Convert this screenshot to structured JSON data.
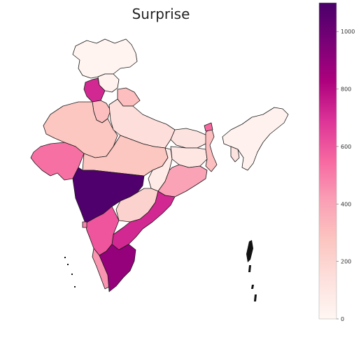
{
  "title": "Surprise",
  "colormap": {
    "name": "RdPu",
    "stops": [
      "#fff7f3",
      "#fde0dd",
      "#fcc5c0",
      "#fa9fb5",
      "#f768a1",
      "#dd3497",
      "#ae017e",
      "#7a0177",
      "#49006a"
    ],
    "min": 0,
    "max": 1100
  },
  "colorbar": {
    "ticks": [
      0,
      200,
      400,
      600,
      800,
      1000
    ]
  },
  "regions": [
    {
      "name": "Jammu and Kashmir",
      "value": 20
    },
    {
      "name": "Himachal Pradesh",
      "value": 30
    },
    {
      "name": "Punjab",
      "value": 720
    },
    {
      "name": "Uttarakhand",
      "value": 300
    },
    {
      "name": "Haryana",
      "value": 300
    },
    {
      "name": "Rajasthan",
      "value": 270
    },
    {
      "name": "Uttar Pradesh",
      "value": 150
    },
    {
      "name": "Bihar",
      "value": 120
    },
    {
      "name": "Gujarat",
      "value": 530
    },
    {
      "name": "Madhya Pradesh",
      "value": 270
    },
    {
      "name": "Chhattisgarh",
      "value": 80
    },
    {
      "name": "Jharkhand",
      "value": 100
    },
    {
      "name": "West Bengal",
      "value": 300
    },
    {
      "name": "Odisha",
      "value": 400
    },
    {
      "name": "Maharashtra",
      "value": 1080
    },
    {
      "name": "Telangana",
      "value": 210
    },
    {
      "name": "Andhra Pradesh",
      "value": 720
    },
    {
      "name": "Karnataka",
      "value": 600
    },
    {
      "name": "Goa",
      "value": 480
    },
    {
      "name": "Kerala",
      "value": 440
    },
    {
      "name": "Tamil Nadu",
      "value": 890
    },
    {
      "name": "Sikkim",
      "value": 550
    },
    {
      "name": "Northeast",
      "value": 30
    },
    {
      "name": "Tripura",
      "value": 120
    },
    {
      "name": "Andaman and Nicobar",
      "value": 0
    }
  ]
}
